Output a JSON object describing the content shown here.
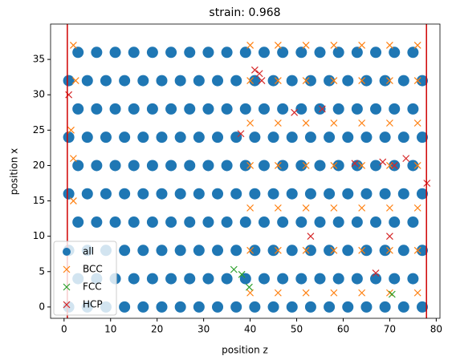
{
  "chart_data": {
    "type": "scatter",
    "title": "strain: 0.968",
    "xlabel": "position z",
    "ylabel": "position x",
    "xlim": [
      -2.9,
      80.8
    ],
    "ylim": [
      -1.6,
      40
    ],
    "xticks": [
      0,
      10,
      20,
      30,
      40,
      50,
      60,
      70,
      80
    ],
    "yticks": [
      0,
      5,
      10,
      15,
      20,
      25,
      30,
      35
    ],
    "vlines": [
      0.7,
      77.9
    ],
    "vline_color": "#d00000",
    "legend": "lower left",
    "series": [
      {
        "name": "all",
        "color": "#1f77b4",
        "marker": "circle",
        "x": [
          1,
          5,
          9,
          13,
          17,
          21,
          25,
          29,
          33,
          37,
          41,
          45,
          49,
          53,
          57,
          61,
          65,
          69,
          73,
          77,
          3,
          7,
          11,
          15,
          19,
          23,
          27,
          31,
          35,
          39,
          43,
          47,
          51,
          55,
          59,
          63,
          67,
          71,
          75,
          1,
          5,
          9,
          13,
          17,
          21,
          25,
          29,
          33,
          37,
          41,
          45,
          49,
          53,
          57,
          61,
          65,
          69,
          73,
          77,
          3,
          7,
          11,
          15,
          19,
          23,
          27,
          31,
          35,
          39,
          43,
          47,
          51,
          55,
          59,
          63,
          67,
          71,
          75,
          1,
          5,
          9,
          13,
          17,
          21,
          25,
          29,
          33,
          37,
          41,
          45,
          49,
          53,
          57,
          61,
          65,
          69,
          73,
          77,
          3,
          7,
          11,
          15,
          19,
          23,
          27,
          31,
          35,
          39,
          43,
          47,
          51,
          55,
          59,
          63,
          67,
          71,
          75,
          1,
          5,
          9,
          13,
          17,
          21,
          25,
          29,
          33,
          37,
          41,
          45,
          49,
          53,
          57,
          61,
          65,
          69,
          73,
          77,
          3,
          7,
          11,
          15,
          19,
          23,
          27,
          31,
          35,
          39,
          43,
          47,
          51,
          55,
          59,
          63,
          67,
          71,
          75,
          1,
          5,
          9,
          13,
          17,
          21,
          25,
          29,
          33,
          37,
          41,
          45,
          49,
          53,
          57,
          61,
          65,
          69,
          73,
          77,
          3,
          7,
          11,
          15,
          19,
          23,
          27,
          31,
          35,
          39,
          43,
          47,
          51,
          55,
          59,
          63,
          67,
          71,
          75
        ],
        "y": [
          0,
          0,
          0,
          0,
          0,
          0,
          0,
          0,
          0,
          0,
          0,
          0,
          0,
          0,
          0,
          0,
          0,
          0,
          0,
          0,
          4,
          4,
          4,
          4,
          4,
          4,
          4,
          4,
          4,
          4,
          4,
          4,
          4,
          4,
          4,
          4,
          4,
          4,
          4,
          8,
          8,
          8,
          8,
          8,
          8,
          8,
          8,
          8,
          8,
          8,
          8,
          8,
          8,
          8,
          8,
          8,
          8,
          8,
          8,
          12,
          12,
          12,
          12,
          12,
          12,
          12,
          12,
          12,
          12,
          12,
          12,
          12,
          12,
          12,
          12,
          12,
          12,
          12,
          16,
          16,
          16,
          16,
          16,
          16,
          16,
          16,
          16,
          16,
          16,
          16,
          16,
          16,
          16,
          16,
          16,
          16,
          16,
          16,
          20,
          20,
          20,
          20,
          20,
          20,
          20,
          20,
          20,
          20,
          20,
          20,
          20,
          20,
          20,
          20,
          20,
          20,
          20,
          24,
          24,
          24,
          24,
          24,
          24,
          24,
          24,
          24,
          24,
          24,
          24,
          24,
          24,
          24,
          24,
          24,
          24,
          24,
          24,
          28,
          28,
          28,
          28,
          28,
          28,
          28,
          28,
          28,
          28,
          28,
          28,
          28,
          28,
          28,
          28,
          28,
          28,
          28,
          32,
          32,
          32,
          32,
          32,
          32,
          32,
          32,
          32,
          32,
          32,
          32,
          32,
          32,
          32,
          32,
          32,
          32,
          32,
          32,
          36,
          36,
          36,
          36,
          36,
          36,
          36,
          36,
          36,
          36,
          36,
          36,
          36,
          36,
          36,
          36,
          36,
          36,
          36
        ]
      },
      {
        "name": "BCC",
        "color": "#ff7f0e",
        "marker": "x",
        "x": [
          40,
          46,
          52,
          58,
          64,
          70,
          76,
          40,
          46,
          52,
          58,
          64,
          70,
          76,
          40,
          46,
          52,
          58,
          64,
          70,
          76,
          40,
          46,
          52,
          58,
          64,
          70,
          76,
          40,
          46,
          52,
          58,
          64,
          70,
          76,
          40,
          46,
          52,
          58,
          64,
          70,
          76,
          40,
          46,
          52,
          58,
          64,
          70,
          76,
          2,
          2,
          1.5,
          2.5,
          2
        ],
        "y": [
          2,
          2,
          2,
          2,
          2,
          2,
          2,
          8,
          8,
          8,
          8,
          8,
          8,
          8,
          14,
          14,
          14,
          14,
          14,
          14,
          14,
          20,
          20,
          20,
          20,
          20,
          20,
          20,
          26,
          26,
          26,
          26,
          26,
          26,
          26,
          32,
          32,
          32,
          32,
          32,
          32,
          32,
          37,
          37,
          37,
          37,
          37,
          37,
          37,
          15,
          21,
          25,
          32,
          37
        ]
      },
      {
        "name": "FCC",
        "color": "#2ca02c",
        "marker": "x",
        "x": [
          36.5,
          38.2,
          39.8,
          70.5
        ],
        "y": [
          5.3,
          4.6,
          2.8,
          1.8
        ]
      },
      {
        "name": "HCP",
        "color": "#d62728",
        "marker": "x",
        "x": [
          41,
          42.5,
          38,
          49.5,
          55.5,
          62.5,
          68.5,
          71,
          73.5,
          67,
          53,
          70,
          78,
          1,
          42
        ],
        "y": [
          33.5,
          32,
          24.5,
          27.5,
          28,
          20.3,
          20.5,
          20,
          21,
          4.8,
          10,
          10,
          17.5,
          30,
          33
        ]
      }
    ]
  }
}
